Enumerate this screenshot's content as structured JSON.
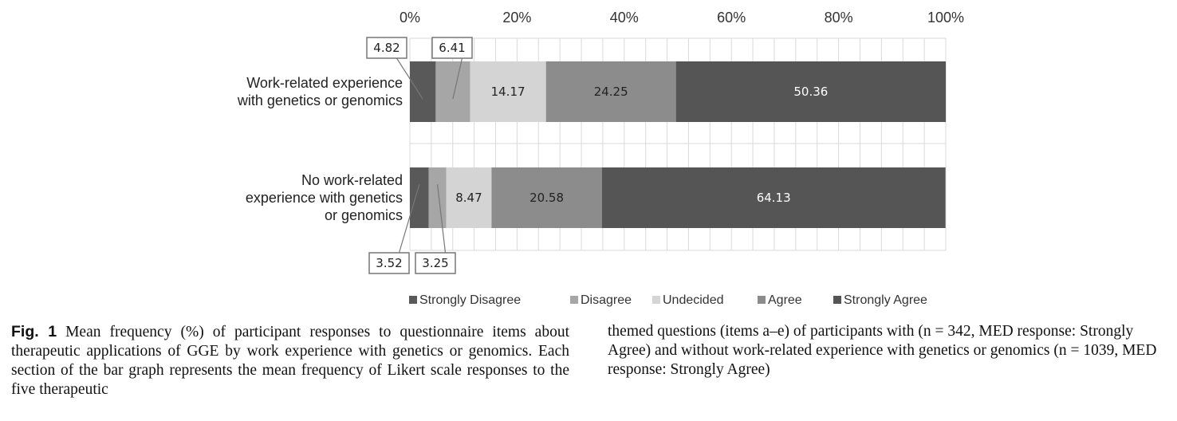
{
  "chart_data": {
    "type": "bar",
    "orientation": "horizontal",
    "stacked": true,
    "categories": [
      [
        "Work-related experience",
        "with genetics or genomics"
      ],
      [
        "No work-related",
        "experience with genetics",
        "or genomics"
      ]
    ],
    "series": [
      {
        "name": "Strongly Disagree",
        "color": "#595959",
        "values": [
          4.82,
          3.52
        ]
      },
      {
        "name": "Disagree",
        "color": "#a6a6a6",
        "values": [
          6.41,
          3.25
        ]
      },
      {
        "name": "Undecided",
        "color": "#d4d4d4",
        "values": [
          14.17,
          8.47
        ]
      },
      {
        "name": "Agree",
        "color": "#8c8c8c",
        "values": [
          24.25,
          20.58
        ]
      },
      {
        "name": "Strongly Agree",
        "color": "#555555",
        "values": [
          50.36,
          64.13
        ]
      }
    ],
    "data_labels": [
      [
        "4.82",
        "6.41",
        "14.17",
        "24.25",
        "50.36"
      ],
      [
        "3.52",
        "3.25",
        "8.47",
        "20.58",
        "64.13"
      ]
    ],
    "xlim": [
      0,
      100
    ],
    "x_ticks": [
      "0%",
      "20%",
      "40%",
      "60%",
      "80%",
      "100%"
    ],
    "x_tick_values": [
      0,
      20,
      40,
      60,
      80,
      100
    ],
    "grid": true,
    "legend": "bottom"
  },
  "caption": {
    "fig_label": "Fig. 1",
    "text_left": "Mean frequency (%) of participant responses to questionnaire items about therapeutic applications of GGE by work experience with genetics or genomics. Each section of the bar graph represents the mean frequency of Likert scale responses to the five therapeutic",
    "text_right": "themed questions (items a–e) of participants with (n = 342, MED response: Strongly Agree) and without work-related experience with genetics or genomics (n = 1039, MED response: Strongly Agree)"
  }
}
